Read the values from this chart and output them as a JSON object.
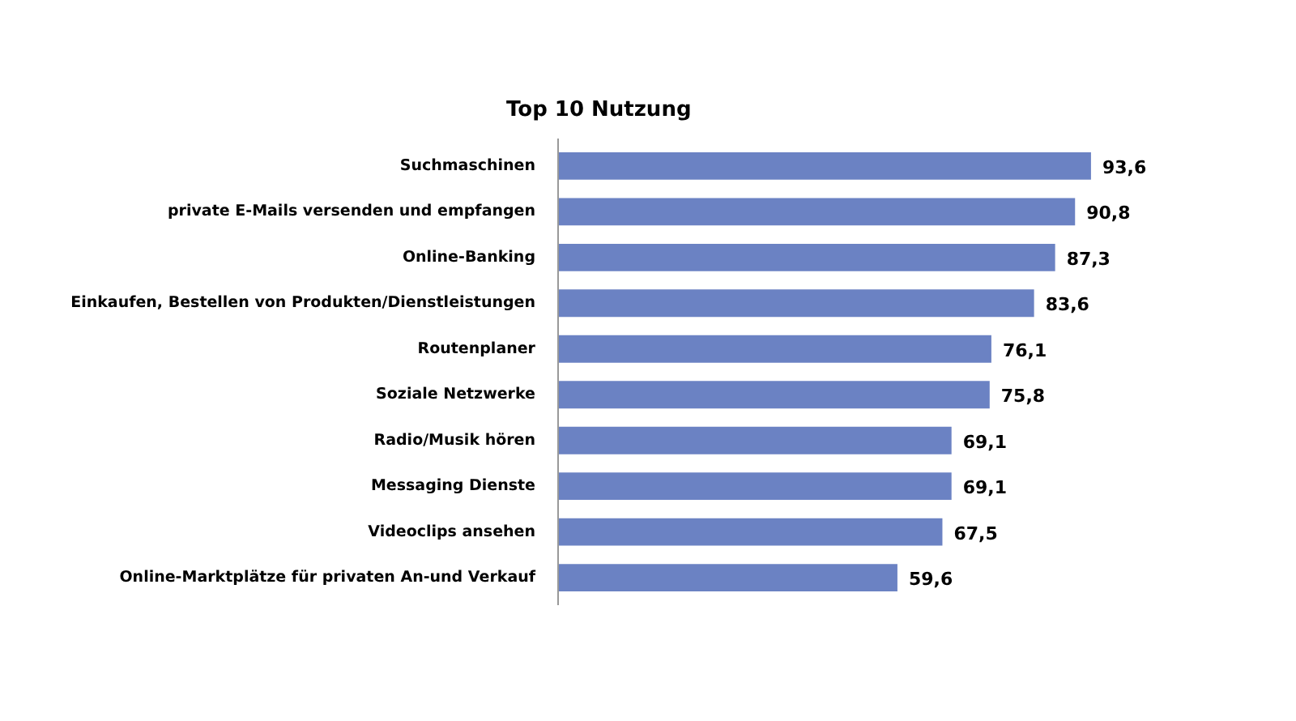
{
  "chart_data": {
    "type": "bar",
    "orientation": "horizontal",
    "title": "Top 10 Nutzung",
    "categories": [
      "Suchmaschinen",
      "private E-Mails versenden und empfangen",
      "Online-Banking",
      "Einkaufen, Bestellen von Produkten/Dienstleistungen",
      "Routenplaner",
      "Soziale Netzwerke",
      "Radio/Musik hören",
      "Messaging Dienste",
      "Videoclips ansehen",
      "Online-Marktplätze für privaten An-und Verkauf"
    ],
    "values": [
      93.6,
      90.8,
      87.3,
      83.6,
      76.1,
      75.8,
      69.1,
      69.1,
      67.5,
      59.6
    ],
    "color": "#6b82c3",
    "data_labels": true,
    "value_labels": [
      "93,6",
      "90,8",
      "87,3",
      "83,6",
      "76,1",
      "75,8",
      "69,1",
      "69,1",
      "67,5",
      "59,6"
    ],
    "tick_labels": "y",
    "grid": false
  }
}
